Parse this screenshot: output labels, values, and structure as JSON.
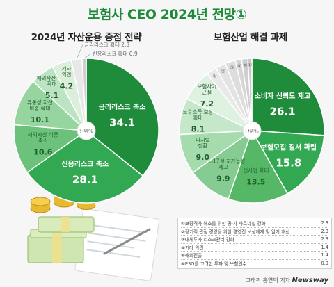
{
  "title": "보험사 CEO 2024년 전망①",
  "unit_label": "단위%",
  "chart_data": [
    {
      "type": "pie",
      "title": "2024년 자산운용 중점 전략",
      "unit": "%",
      "slices": [
        {
          "label": "금리리스크 축소",
          "value": 34.1,
          "color": "#1e8c3a"
        },
        {
          "label": "신용리스크 축소",
          "value": 28.1,
          "color": "#33a852"
        },
        {
          "label": "해외자산 비중 축소",
          "value": 10.6,
          "color": "#6cc27b"
        },
        {
          "label": "유동성 자산 비중 확대",
          "value": 10.1,
          "color": "#96d4a0"
        },
        {
          "label": "해외자산 비중 확대",
          "value": 5.1,
          "color": "#bce4c2"
        },
        {
          "label": "기타 의견",
          "value": 4.2,
          "color": "#dcefdd"
        },
        {
          "label": "금리리스크 확대",
          "value": 2.3,
          "color": "#e8e8e8"
        },
        {
          "label": "신용리스크 확대",
          "value": 0.9,
          "color": "#cfcfcf"
        }
      ]
    },
    {
      "type": "pie",
      "title": "보험산업 해결 과제",
      "unit": "%",
      "slices": [
        {
          "label": "소비자 신뢰도 제고",
          "value": 26.1,
          "color": "#1e8c3a"
        },
        {
          "label": "보험모집 질서 확립",
          "value": 15.8,
          "color": "#33a852"
        },
        {
          "label": "신사업 확대",
          "value": 13.5,
          "color": "#56b866"
        },
        {
          "label": "IFRS17 비교가능성 제고",
          "value": 9.9,
          "color": "#86cc92"
        },
        {
          "label": "디지털 전환",
          "value": 9.0,
          "color": "#a6dbae"
        },
        {
          "label": "노후소득 보장 확대",
          "value": 8.1,
          "color": "#c5e8ca"
        },
        {
          "label": "보험사기 근절",
          "value": 7.2,
          "color": "#dff1e1"
        },
        {
          "label": "①",
          "value": 2.3,
          "color": "#e9e9e9"
        },
        {
          "label": "②",
          "value": 2.3,
          "color": "#e3e3e3"
        },
        {
          "label": "③",
          "value": 2.3,
          "color": "#dddddd"
        },
        {
          "label": "④",
          "value": 1.4,
          "color": "#d6d6d6"
        },
        {
          "label": "⑤",
          "value": 1.4,
          "color": "#cfcfcf"
        },
        {
          "label": "⑥",
          "value": 0.9,
          "color": "#c8c8c8"
        }
      ]
    }
  ],
  "legend": [
    {
      "text": "①보장격차 해소를 위한 공·사 파트너십 강화",
      "value": "2.3"
    },
    {
      "text": "②장기적 관점 경영을 위한 경영진 보상체계 및 임기 개선",
      "value": "2.3"
    },
    {
      "text": "③대체투자 리스크관리 강화",
      "value": "2.3"
    },
    {
      "text": "④기타 의견",
      "value": "1.4"
    },
    {
      "text": "⑤해외진출",
      "value": "1.4"
    },
    {
      "text": "⑥ESG를 고려한 투자 및 보험인수",
      "value": "0.9"
    }
  ],
  "footer": {
    "credit": "그래픽 홍연택 기자",
    "brand": "Newsway"
  }
}
